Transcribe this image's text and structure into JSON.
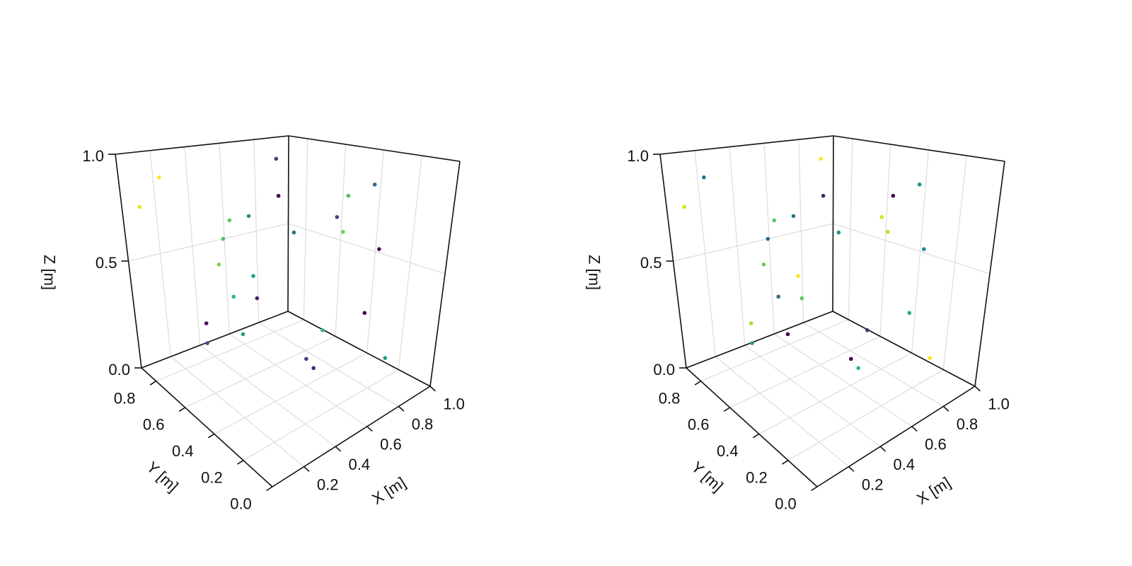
{
  "chart_data": [
    {
      "type": "scatter3d",
      "xlabel": "X [m]",
      "ylabel": "Y [m]",
      "zlabel": "Z [m]",
      "x": [
        0.83,
        0.15,
        0.02,
        0.47,
        0.3,
        0.19,
        0.15,
        0.56,
        0.12,
        0.32,
        0.2,
        0.34,
        0.03,
        0.03,
        0.25,
        0.64,
        0.87,
        0.81,
        0.85,
        0.69,
        0.63,
        0.75,
        0.65,
        0.7,
        0.78
      ],
      "y": [
        0.81,
        0.81,
        0.81,
        0.45,
        0.45,
        0.45,
        0.45,
        0.45,
        0.45,
        0.45,
        0.45,
        0.45,
        0.45,
        0.45,
        0.45,
        0.09,
        0.45,
        0.45,
        0.45,
        0.09,
        0.09,
        0.45,
        0.45,
        0.45,
        0.09
      ],
      "z": [
        0.91,
        0.9,
        0.78,
        0.86,
        0.8,
        0.8,
        0.73,
        0.68,
        0.63,
        0.54,
        0.48,
        0.44,
        0.41,
        0.33,
        0.31,
        0.95,
        0.79,
        0.7,
        0.62,
        0.67,
        0.42,
        0.18,
        0.08,
        0.02,
        0.18
      ],
      "colors": [
        "#433e85",
        "#fde725",
        "#e5e419",
        "#440154",
        "#21918c",
        "#5ec962",
        "#4ac16d",
        "#2c728e",
        "#7ad151",
        "#1f9e89",
        "#35b779",
        "#481c6e",
        "#46085c",
        "#3b528b",
        "#1f9e89",
        "#31688e",
        "#4ac16d",
        "#414487",
        "#6ece58",
        "#46085c",
        "#440154",
        "#35b779",
        "#414487",
        "#482878",
        "#1f988b"
      ],
      "xlim": [
        0,
        1
      ],
      "ylim": [
        0,
        0.9
      ],
      "zlim": [
        0,
        1
      ],
      "xticks": [
        0.2,
        0.4,
        0.6,
        0.8,
        {
          "value": 1,
          "label": "1.0"
        }
      ],
      "yticks": [
        {
          "value": 0,
          "label": "0.0"
        },
        0.2,
        0.4,
        0.6,
        0.8
      ],
      "zticks": [
        {
          "value": 0,
          "label": "0.0"
        },
        0.5,
        {
          "value": 1,
          "label": "1.0"
        }
      ],
      "grid": true
    },
    {
      "type": "scatter3d",
      "xlabel": "X [m]",
      "ylabel": "Y [m]",
      "zlabel": "Z [m]",
      "x": [
        0.15,
        0.02,
        0.83,
        0.47,
        0.3,
        0.19,
        0.15,
        0.56,
        0.12,
        0.32,
        0.2,
        0.34,
        0.03,
        0.03,
        0.25,
        0.64,
        0.87,
        0.81,
        0.85,
        0.69,
        0.63,
        0.75,
        0.65,
        0.7,
        0.78
      ],
      "y": [
        0.81,
        0.81,
        0.81,
        0.45,
        0.45,
        0.45,
        0.45,
        0.45,
        0.45,
        0.45,
        0.45,
        0.45,
        0.45,
        0.45,
        0.45,
        0.09,
        0.45,
        0.45,
        0.45,
        0.09,
        0.09,
        0.45,
        0.45,
        0.45,
        0.09
      ],
      "z": [
        0.9,
        0.78,
        0.91,
        0.86,
        0.8,
        0.8,
        0.73,
        0.68,
        0.63,
        0.54,
        0.48,
        0.44,
        0.41,
        0.33,
        0.31,
        0.95,
        0.79,
        0.7,
        0.62,
        0.67,
        0.42,
        0.18,
        0.08,
        0.02,
        0.18
      ],
      "colors": [
        "#2c728e",
        "#d8e219",
        "#fde725",
        "#482475",
        "#2c728e",
        "#5ec962",
        "#31688e",
        "#21918c",
        "#6ece58",
        "#fde725",
        "#31688e",
        "#5ec962",
        "#a0da39",
        "#1f9e89",
        "#440154",
        "#21918c",
        "#440154",
        "#d8e219",
        "#c2df23",
        "#21918c",
        "#25ab82",
        "#472d7b",
        "#440154",
        "#35b779",
        "#fde725"
      ],
      "xlim": [
        0,
        1
      ],
      "ylim": [
        0,
        0.9
      ],
      "zlim": [
        0,
        1
      ],
      "xticks": [
        0.2,
        0.4,
        0.6,
        0.8,
        {
          "value": 1,
          "label": "1.0"
        }
      ],
      "yticks": [
        {
          "value": 0,
          "label": "0.0"
        },
        0.2,
        0.4,
        0.6,
        0.8
      ],
      "zticks": [
        {
          "value": 0,
          "label": "0.0"
        },
        0.5,
        {
          "value": 1,
          "label": "1.0"
        }
      ],
      "grid": true
    }
  ]
}
